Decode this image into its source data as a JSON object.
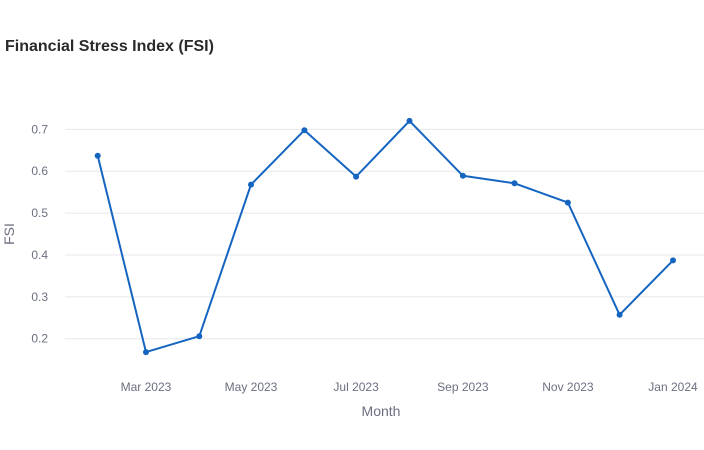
{
  "chart_data": {
    "type": "line",
    "title": "Financial Stress Index (FSI)",
    "xlabel": "Month",
    "ylabel": "FSI",
    "x": [
      "2023-02-01",
      "2023-03-01",
      "2023-04-01",
      "2023-05-01",
      "2023-06-01",
      "2023-07-01",
      "2023-08-01",
      "2023-09-01",
      "2023-10-01",
      "2023-11-01",
      "2023-12-01",
      "2024-01-01"
    ],
    "series": [
      {
        "values": [
          0.637,
          0.168,
          0.206,
          0.568,
          0.698,
          0.587,
          0.72,
          0.589,
          0.571,
          0.525,
          0.257,
          0.387
        ]
      }
    ],
    "x_ticks": [
      {
        "date": "2023-03-01",
        "label": "Mar 2023"
      },
      {
        "date": "2023-05-01",
        "label": "May 2023"
      },
      {
        "date": "2023-07-01",
        "label": "Jul 2023"
      },
      {
        "date": "2023-09-01",
        "label": "Sep 2023"
      },
      {
        "date": "2023-11-01",
        "label": "Nov 2023"
      },
      {
        "date": "2024-01-01",
        "label": "Jan 2024"
      }
    ],
    "y_ticks": [
      0.2,
      0.3,
      0.4,
      0.5,
      0.6,
      0.7
    ],
    "ylim": [
      0.13,
      0.77
    ],
    "xlim": [
      "2023-01-13",
      "2024-01-19"
    ],
    "grid": true,
    "legend": false,
    "colors": {
      "line": "#1565c0",
      "grid": "#e8e8ec",
      "text": "#6b6f80",
      "title": "#2a2a2a"
    }
  }
}
